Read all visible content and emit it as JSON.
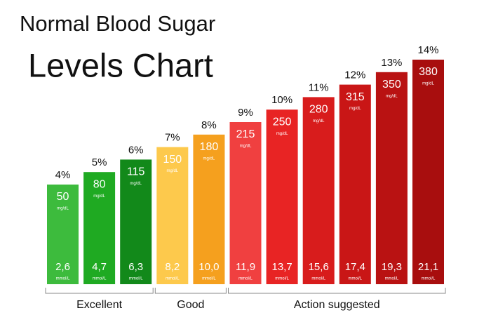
{
  "chart_data": {
    "type": "bar",
    "title": "Normal Blood Sugar",
    "subtitle": "Levels Chart",
    "values": [
      4,
      5,
      6,
      7,
      8,
      9,
      10,
      11,
      12,
      13,
      14
    ],
    "value_labels": [
      "4%",
      "5%",
      "6%",
      "7%",
      "8%",
      "9%",
      "10%",
      "11%",
      "12%",
      "13%",
      "14%"
    ],
    "mg_dl": [
      50,
      80,
      115,
      150,
      180,
      215,
      250,
      280,
      315,
      350,
      380
    ],
    "mg_unit": "mg/dL",
    "mmol_labels": [
      "2,6",
      "4,7",
      "6,3",
      "8,2",
      "10,0",
      "11,9",
      "13,7",
      "15,6",
      "17,4",
      "19,3",
      "21,1"
    ],
    "mmol_unit": "mmol/L",
    "colors": [
      "#3dbb3d",
      "#1faa22",
      "#12891a",
      "#fdc94c",
      "#f5a01e",
      "#f04040",
      "#e82424",
      "#d81c1c",
      "#c91616",
      "#b91212",
      "#a80e0e"
    ],
    "groups": [
      "Excellent",
      "Good",
      "Action suggested"
    ]
  }
}
